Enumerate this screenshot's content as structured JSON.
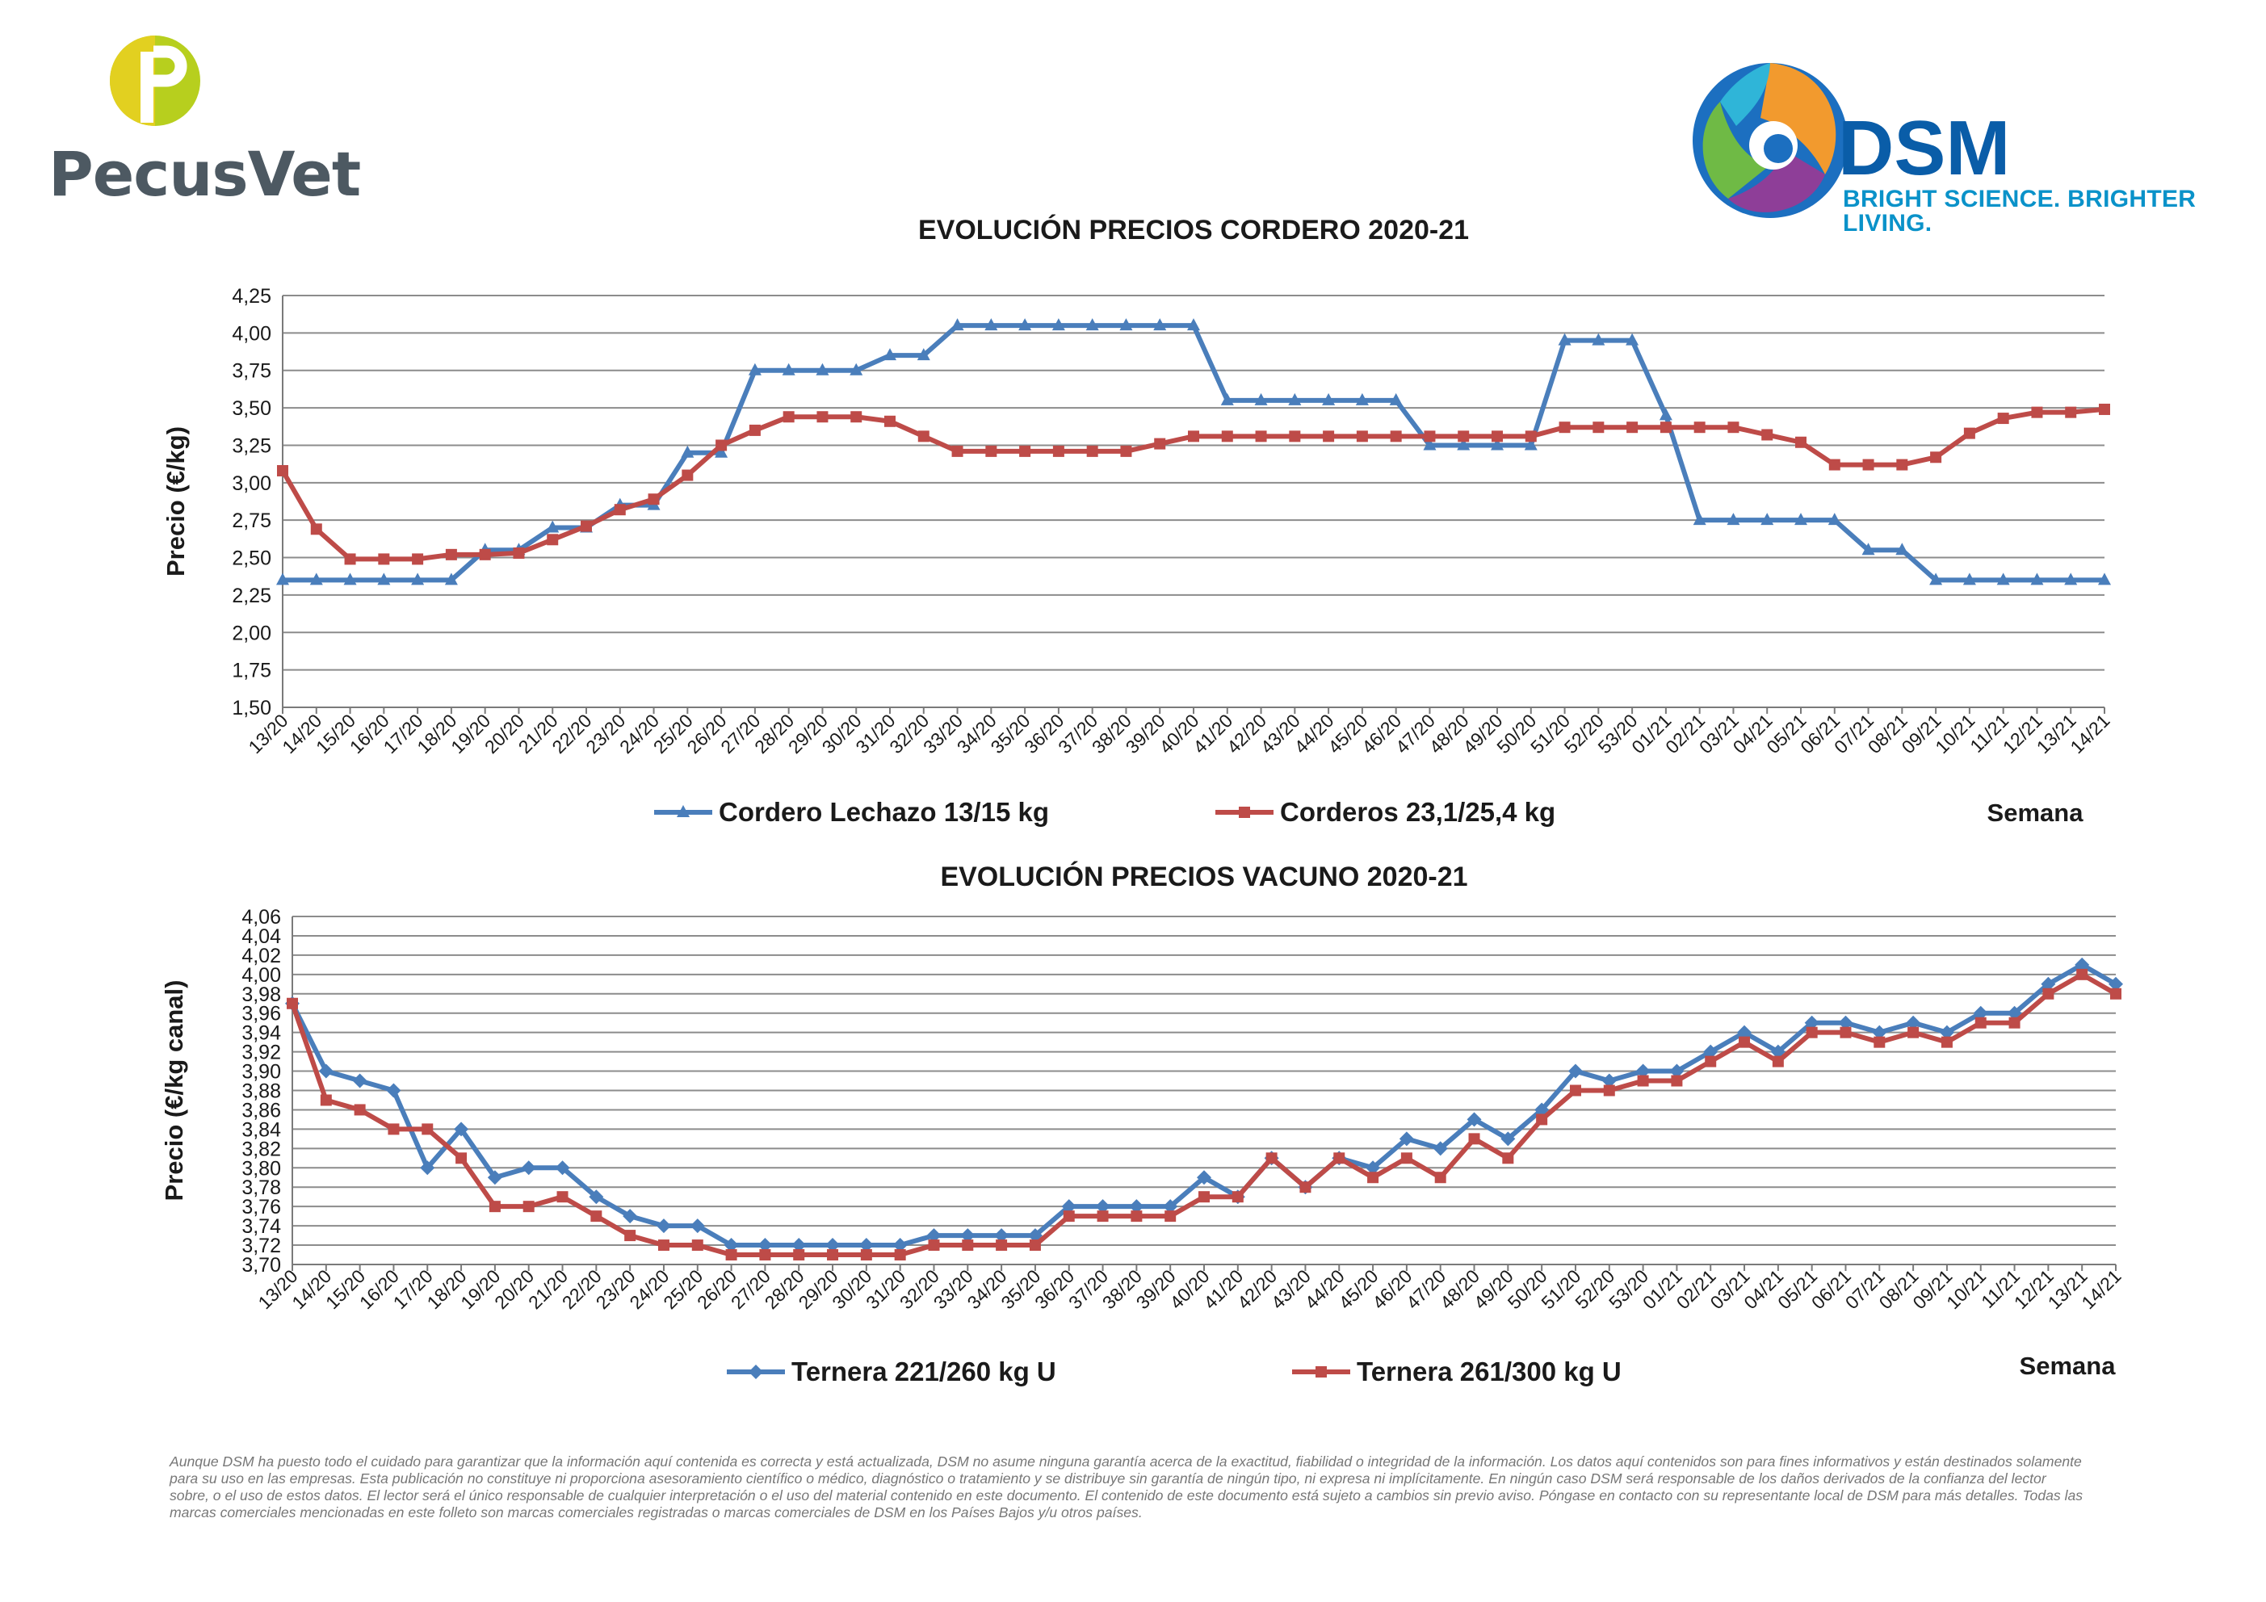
{
  "logos": {
    "pecusvet": {
      "name": "PecusVet",
      "colors": {
        "green": "#b7cf1e",
        "text": "#4d5962"
      }
    },
    "dsm": {
      "name": "DSM",
      "slogan": "BRIGHT SCIENCE. BRIGHTER LIVING.",
      "colors": {
        "text": "#0a5da8",
        "slogan": "#0a92c9"
      }
    }
  },
  "chart_data": [
    {
      "type": "line",
      "title": "EVOLUCIÓN PRECIOS CORDERO 2020-21",
      "ylabel": "Precio (€/kg)",
      "xlabel": "Semana",
      "ylim": [
        1.5,
        4.25
      ],
      "yticks": [
        "1,50",
        "1,75",
        "2,00",
        "2,25",
        "2,50",
        "2,75",
        "3,00",
        "3,25",
        "3,50",
        "3,75",
        "4,00",
        "4,25"
      ],
      "grid": true,
      "legend": "bottom",
      "categories": [
        "13/20",
        "14/20",
        "15/20",
        "16/20",
        "17/20",
        "18/20",
        "19/20",
        "20/20",
        "21/20",
        "22/20",
        "23/20",
        "24/20",
        "25/20",
        "26/20",
        "27/20",
        "28/20",
        "29/20",
        "30/20",
        "31/20",
        "32/20",
        "33/20",
        "34/20",
        "35/20",
        "36/20",
        "37/20",
        "38/20",
        "39/20",
        "40/20",
        "41/20",
        "42/20",
        "43/20",
        "44/20",
        "45/20",
        "46/20",
        "47/20",
        "48/20",
        "49/20",
        "50/20",
        "51/20",
        "52/20",
        "53/20",
        "01/21",
        "02/21",
        "03/21",
        "04/21",
        "05/21",
        "06/21",
        "07/21",
        "08/21",
        "09/21",
        "10/21",
        "11/21",
        "12/21",
        "13/21",
        "14/21"
      ],
      "series": [
        {
          "name": "Cordero Lechazo 13/15 kg",
          "color": "#4a7ebb",
          "marker": "triangle",
          "values": [
            2.35,
            2.35,
            2.35,
            2.35,
            2.35,
            2.35,
            2.55,
            2.55,
            2.7,
            2.7,
            2.85,
            2.85,
            3.2,
            3.2,
            3.75,
            3.75,
            3.75,
            3.75,
            3.85,
            3.85,
            4.05,
            4.05,
            4.05,
            4.05,
            4.05,
            4.05,
            4.05,
            4.05,
            3.55,
            3.55,
            3.55,
            3.55,
            3.55,
            3.55,
            3.25,
            3.25,
            3.25,
            3.25,
            3.95,
            3.95,
            3.95,
            3.45,
            2.75,
            2.75,
            2.75,
            2.75,
            2.75,
            2.55,
            2.55,
            2.35,
            2.35,
            2.35,
            2.35,
            2.35,
            2.35
          ]
        },
        {
          "name": "Corderos 23,1/25,4 kg",
          "color": "#be4b48",
          "marker": "square",
          "values": [
            3.08,
            2.69,
            2.49,
            2.49,
            2.49,
            2.52,
            2.52,
            2.53,
            2.62,
            2.71,
            2.82,
            2.89,
            3.05,
            3.25,
            3.35,
            3.44,
            3.44,
            3.44,
            3.41,
            3.31,
            3.21,
            3.21,
            3.21,
            3.21,
            3.21,
            3.21,
            3.26,
            3.31,
            3.31,
            3.31,
            3.31,
            3.31,
            3.31,
            3.31,
            3.31,
            3.31,
            3.31,
            3.31,
            3.37,
            3.37,
            3.37,
            3.37,
            3.37,
            3.37,
            3.32,
            3.27,
            3.12,
            3.12,
            3.12,
            3.17,
            3.33,
            3.43,
            3.47,
            3.47,
            3.49
          ]
        }
      ]
    },
    {
      "type": "line",
      "title": "EVOLUCIÓN PRECIOS VACUNO 2020-21",
      "ylabel": "Precio (€/kg canal)",
      "xlabel": "Semana",
      "ylim": [
        3.7,
        4.06
      ],
      "yticks": [
        "3,70",
        "3,72",
        "3,74",
        "3,76",
        "3,78",
        "3,80",
        "3,82",
        "3,84",
        "3,86",
        "3,88",
        "3,90",
        "3,92",
        "3,94",
        "3,96",
        "3,98",
        "4,00",
        "4,02",
        "4,04",
        "4,06"
      ],
      "grid": true,
      "legend": "bottom",
      "categories": [
        "13/20",
        "14/20",
        "15/20",
        "16/20",
        "17/20",
        "18/20",
        "19/20",
        "20/20",
        "21/20",
        "22/20",
        "23/20",
        "24/20",
        "25/20",
        "26/20",
        "27/20",
        "28/20",
        "29/20",
        "30/20",
        "31/20",
        "32/20",
        "33/20",
        "34/20",
        "35/20",
        "36/20",
        "37/20",
        "38/20",
        "39/20",
        "40/20",
        "41/20",
        "42/20",
        "43/20",
        "44/20",
        "45/20",
        "46/20",
        "47/20",
        "48/20",
        "49/20",
        "50/20",
        "51/20",
        "52/20",
        "53/20",
        "01/21",
        "02/21",
        "03/21",
        "04/21",
        "05/21",
        "06/21",
        "07/21",
        "08/21",
        "09/21",
        "10/21",
        "11/21",
        "12/21",
        "13/21",
        "14/21"
      ],
      "series": [
        {
          "name": "Ternera 221/260 kg U",
          "color": "#4a7ebb",
          "marker": "diamond",
          "values": [
            3.97,
            3.9,
            3.89,
            3.88,
            3.8,
            3.84,
            3.79,
            3.8,
            3.8,
            3.77,
            3.75,
            3.74,
            3.74,
            3.72,
            3.72,
            3.72,
            3.72,
            3.72,
            3.72,
            3.73,
            3.73,
            3.73,
            3.73,
            3.76,
            3.76,
            3.76,
            3.76,
            3.79,
            3.77,
            3.81,
            3.78,
            3.81,
            3.8,
            3.83,
            3.82,
            3.85,
            3.83,
            3.86,
            3.9,
            3.89,
            3.9,
            3.9,
            3.92,
            3.94,
            3.92,
            3.95,
            3.95,
            3.94,
            3.95,
            3.94,
            3.96,
            3.96,
            3.99,
            4.01,
            3.99
          ]
        },
        {
          "name": "Ternera 261/300 kg U",
          "color": "#be4b48",
          "marker": "square",
          "values": [
            3.97,
            3.87,
            3.86,
            3.84,
            3.84,
            3.81,
            3.76,
            3.76,
            3.77,
            3.75,
            3.73,
            3.72,
            3.72,
            3.71,
            3.71,
            3.71,
            3.71,
            3.71,
            3.71,
            3.72,
            3.72,
            3.72,
            3.72,
            3.75,
            3.75,
            3.75,
            3.75,
            3.77,
            3.77,
            3.81,
            3.78,
            3.81,
            3.79,
            3.81,
            3.79,
            3.83,
            3.81,
            3.85,
            3.88,
            3.88,
            3.89,
            3.89,
            3.91,
            3.93,
            3.91,
            3.94,
            3.94,
            3.93,
            3.94,
            3.93,
            3.95,
            3.95,
            3.98,
            4.0,
            3.98
          ]
        }
      ]
    }
  ],
  "disclaimer": "Aunque DSM ha puesto todo el cuidado para garantizar que la información aquí contenida es correcta y está actualizada, DSM no asume ninguna garantía acerca de la exactitud, fiabilidad o integridad de la información. Los datos aquí contenidos son para fines informativos y están destinados solamente para su uso en las empresas. Esta publicación no constituye ni proporciona asesoramiento científico o médico, diagnóstico o tratamiento y se distribuye sin garantía de ningún tipo, ni expresa ni implícitamente. En ningún caso DSM será responsable de los daños derivados de la confianza del lector sobre, o el uso de estos datos. El lector será el único responsable de cualquier interpretación o el uso del material contenido en este documento. El contenido de este documento está sujeto a cambios sin previo aviso. Póngase en contacto con su representante local de DSM para más detalles. Todas las marcas comerciales mencionadas en este folleto son marcas comerciales registradas o marcas comerciales de DSM en los Países Bajos y/u otros países."
}
